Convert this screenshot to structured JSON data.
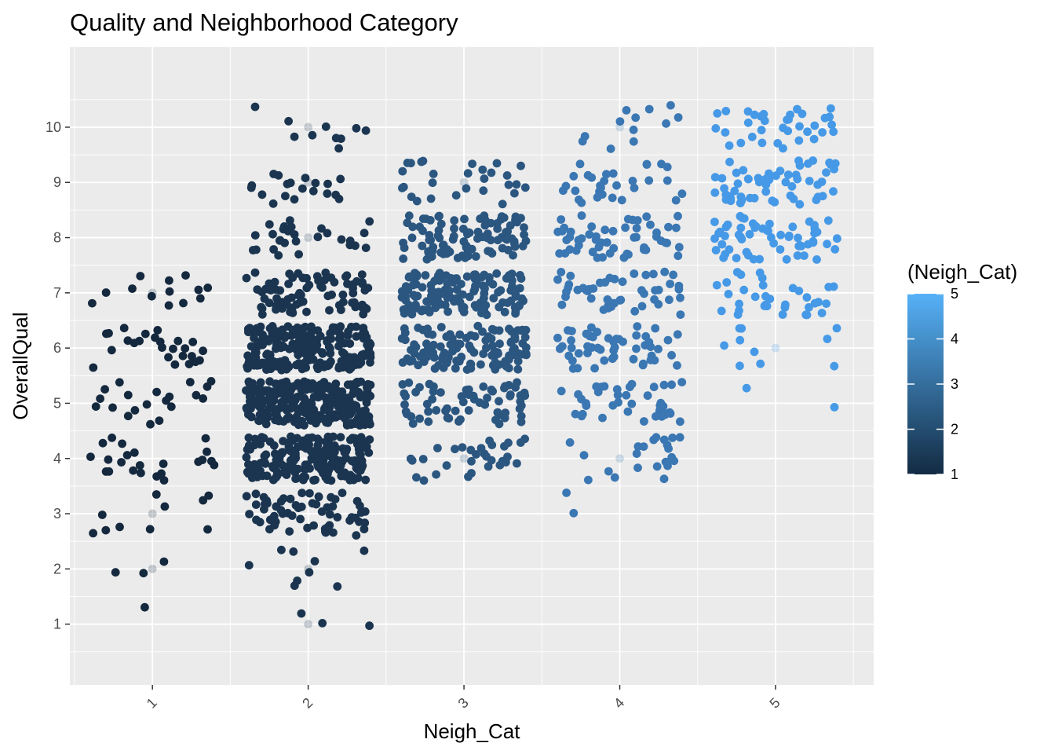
{
  "chart_data": {
    "type": "scatter",
    "title": "Quality and Neighborhood Category",
    "xlabel": "Neigh_Cat",
    "ylabel": "OverallQual",
    "x_ticks": [
      "1",
      "2",
      "3",
      "4",
      "5"
    ],
    "y_ticks": [
      "1",
      "2",
      "3",
      "4",
      "5",
      "6",
      "7",
      "8",
      "9",
      "10"
    ],
    "xlim": [
      0.47,
      5.63
    ],
    "ylim": [
      -0.1,
      11.45
    ],
    "grid": true,
    "jitter": {
      "width": 0.4,
      "height": 0.4
    },
    "legend": {
      "title": "(Neigh_Cat)",
      "position": "right",
      "type": "colorbar",
      "min": 1,
      "max": 5,
      "labels": [
        "1",
        "2",
        "3",
        "4",
        "5"
      ],
      "color_low": "#132B43",
      "color_high": "#56B1F7"
    },
    "series": [
      {
        "category": 1,
        "color": "#14283e",
        "n_points": 95,
        "quality_range": [
          1,
          7
        ],
        "quality_mean": 5.0
      },
      {
        "category": 2,
        "color": "#1b3550",
        "n_points": 880,
        "quality_range": [
          1,
          10
        ],
        "quality_mean": 5.3
      },
      {
        "category": 3,
        "color": "#2b5680",
        "n_points": 480,
        "quality_range": [
          4,
          9
        ],
        "quality_mean": 6.6
      },
      {
        "category": 4,
        "color": "#3a77b3",
        "n_points": 260,
        "quality_range": [
          3,
          10
        ],
        "quality_mean": 6.6
      },
      {
        "category": 5,
        "color": "#4699e6",
        "n_points": 200,
        "quality_range": [
          6,
          10
        ],
        "quality_mean": 8.0
      }
    ],
    "raw_points": [
      {
        "x": 1,
        "y": 2
      },
      {
        "x": 1,
        "y": 3
      },
      {
        "x": 1,
        "y": 7
      },
      {
        "x": 2,
        "y": 1
      },
      {
        "x": 2,
        "y": 2
      },
      {
        "x": 2,
        "y": 8
      },
      {
        "x": 2,
        "y": 9
      },
      {
        "x": 2,
        "y": 10
      },
      {
        "x": 3,
        "y": 4
      },
      {
        "x": 3,
        "y": 9
      },
      {
        "x": 4,
        "y": 4
      },
      {
        "x": 4,
        "y": 10
      },
      {
        "x": 5,
        "y": 6
      }
    ]
  }
}
